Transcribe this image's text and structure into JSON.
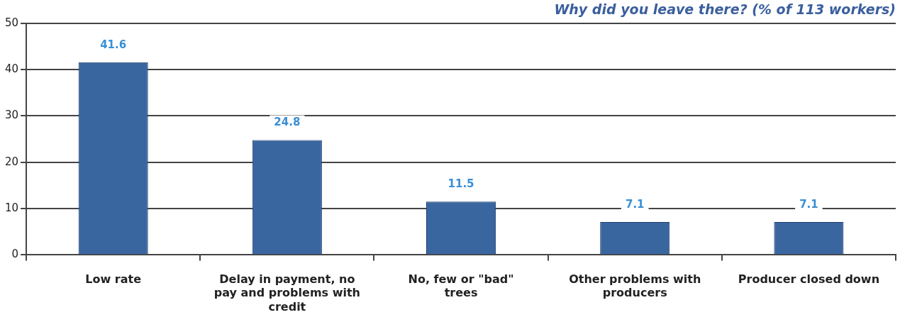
{
  "chart_data": {
    "type": "bar",
    "title": "Why did you leave there? (% of 113 workers)",
    "categories": [
      "Low rate",
      "Delay in payment, no pay and problems with credit",
      "No, few or \"bad\" trees",
      "Other problems with producers",
      "Producer closed down"
    ],
    "values": [
      41.6,
      24.8,
      11.5,
      7.1,
      7.1
    ],
    "color": "#3a66a0",
    "ylim": [
      0,
      50
    ],
    "yticks": [
      0,
      10,
      20,
      30,
      40,
      50
    ],
    "grid": "y",
    "data_labels": true,
    "legend": false
  }
}
